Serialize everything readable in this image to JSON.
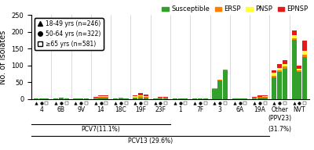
{
  "chart_data": {
    "type": "bar",
    "stacked": true,
    "categories": [
      "4",
      "6B",
      "9V",
      "14",
      "18C",
      "19F",
      "23F",
      "1",
      "7F",
      "3",
      "6A",
      "19A",
      "Other\n(PPV23)",
      "NVT"
    ],
    "subgroups": {
      "legend": "upper left",
      "items": [
        {
          "name": "18-49 yrs (n=246)",
          "marker": "triangle",
          "color": "black"
        },
        {
          "name": "50-64 yrs (n=322)",
          "marker": "circle",
          "color": "black"
        },
        {
          "name": "≥65 yrs (n=581)",
          "marker": "square",
          "color": "white"
        }
      ]
    },
    "series": [
      {
        "name": "Susceptible",
        "color": "#33a02c",
        "values": [
          [
            1,
            1,
            1
          ],
          [
            2,
            3,
            2
          ],
          [
            1,
            1,
            1
          ],
          [
            2,
            4,
            5
          ],
          [
            2,
            2,
            1
          ],
          [
            3,
            5,
            4
          ],
          [
            1,
            2,
            2
          ],
          [
            1,
            1,
            1
          ],
          [
            1,
            2,
            2
          ],
          [
            30,
            55,
            85
          ],
          [
            1,
            2,
            2
          ],
          [
            2,
            4,
            5
          ],
          [
            65,
            80,
            90
          ],
          [
            175,
            80,
            125
          ]
        ]
      },
      {
        "name": "ERSP",
        "color": "#ff7f00",
        "values": [
          [
            0,
            0,
            0
          ],
          [
            0,
            1,
            0
          ],
          [
            0,
            0,
            0
          ],
          [
            1,
            2,
            1
          ],
          [
            0,
            1,
            0
          ],
          [
            2,
            3,
            2
          ],
          [
            0,
            1,
            1
          ],
          [
            0,
            0,
            0
          ],
          [
            0,
            0,
            0
          ],
          [
            2,
            2,
            2
          ],
          [
            0,
            0,
            0
          ],
          [
            2,
            2,
            2
          ],
          [
            5,
            5,
            6
          ],
          [
            6,
            6,
            8
          ]
        ]
      },
      {
        "name": "PNSP",
        "color": "#ffff33",
        "values": [
          [
            0,
            0,
            0
          ],
          [
            0,
            0,
            0
          ],
          [
            0,
            0,
            0
          ],
          [
            2,
            3,
            2
          ],
          [
            0,
            0,
            0
          ],
          [
            3,
            4,
            3
          ],
          [
            0,
            2,
            1
          ],
          [
            0,
            0,
            0
          ],
          [
            0,
            0,
            0
          ],
          [
            0,
            0,
            0
          ],
          [
            0,
            0,
            0
          ],
          [
            0,
            1,
            1
          ],
          [
            8,
            8,
            8
          ],
          [
            8,
            5,
            10
          ]
        ]
      },
      {
        "name": "EPNSP",
        "color": "#e31a1c",
        "values": [
          [
            0,
            0,
            0
          ],
          [
            0,
            0,
            0
          ],
          [
            0,
            0,
            0
          ],
          [
            1,
            1,
            2
          ],
          [
            0,
            0,
            0
          ],
          [
            4,
            5,
            5
          ],
          [
            0,
            1,
            2
          ],
          [
            0,
            0,
            0
          ],
          [
            0,
            0,
            0
          ],
          [
            0,
            0,
            0
          ],
          [
            0,
            0,
            0
          ],
          [
            2,
            3,
            3
          ],
          [
            8,
            10,
            12
          ],
          [
            15,
            8,
            30
          ]
        ]
      }
    ],
    "legend": "upper right",
    "ylabel": "No. of Isolates",
    "ylim": [
      0,
      250
    ],
    "yticks": [
      0,
      50,
      100,
      150,
      200,
      250
    ],
    "brackets": [
      {
        "label": "PCV7(11.1%)",
        "from": "4",
        "to": "23F"
      },
      {
        "label": "PCV13 (29.6%)",
        "from": "4",
        "to": "19A"
      }
    ],
    "annotations": [
      {
        "text": "(31.7%)",
        "category": "Other\n(PPV23)"
      }
    ]
  }
}
